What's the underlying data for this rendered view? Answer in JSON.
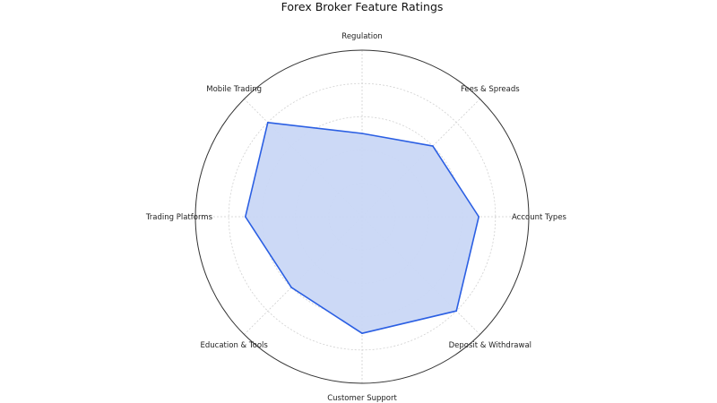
{
  "chart_data": {
    "type": "radar",
    "title": "Forex Broker Feature Ratings",
    "categories": [
      "Regulation",
      "Fees & Spreads",
      "Account Types",
      "Deposit & Withdrawal",
      "Customer Support",
      "Education & Tools",
      "Trading Platforms",
      "Mobile Trading"
    ],
    "values": [
      2.5,
      3.0,
      3.5,
      4.0,
      3.5,
      3.0,
      3.5,
      4.0
    ],
    "rlim": [
      0,
      5
    ],
    "grid_levels": [
      1,
      2,
      3,
      4
    ],
    "grid": true,
    "colors": {
      "line": "#2b5fe3",
      "fill": "#c9d7f5",
      "grid": "#d0d0d0",
      "outer": "#333333"
    }
  }
}
